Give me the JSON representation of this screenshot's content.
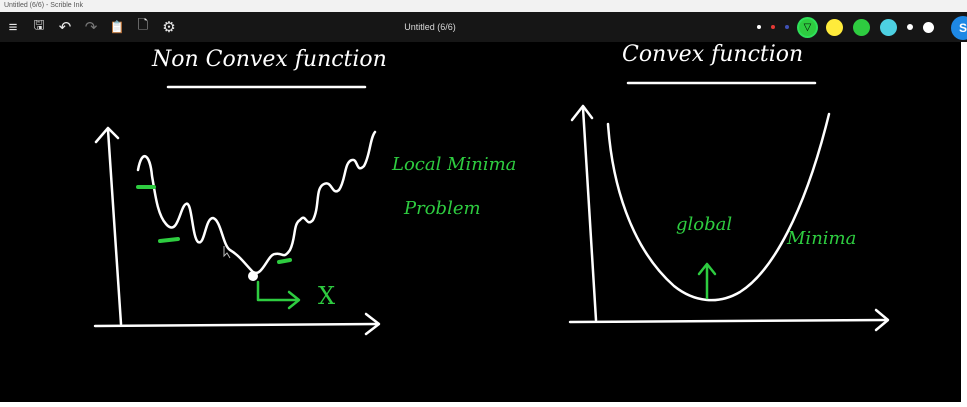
{
  "window": {
    "title": "Untitled (6/6) - Scrible Ink"
  },
  "toolbar": {
    "menu_icon": "≡",
    "save_icon": "🖫",
    "undo_icon": "↶",
    "redo_icon": "↷",
    "clipboard_icon": "📋",
    "page_icon": "🗋",
    "settings_icon": "⚙",
    "document_title": "Untitled (6/6)"
  },
  "palette": {
    "colors": [
      "#ffffff",
      "#e53935",
      "#3f51b5",
      "#2ecc40",
      "#ffeb3b",
      "#2ecc40",
      "#4dd0e1",
      "#ffffff",
      "#ffffff"
    ],
    "selected": "#2ecc40",
    "user_initial": "S"
  },
  "canvas": {
    "left_title": "Non Convex function",
    "right_title": "Convex function",
    "local_annotation_line1": "Local Minima",
    "local_annotation_line2": "Problem",
    "x_marker": "X",
    "global_label": "global",
    "minima_label": "Minima"
  }
}
